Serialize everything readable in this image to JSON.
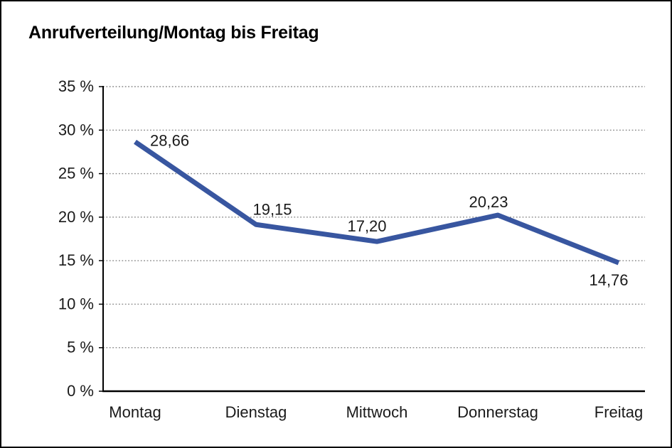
{
  "window": {
    "title": "Anrufverteilung/Montag bis Freitag"
  },
  "chart_data": {
    "type": "line",
    "title": "Anrufverteilung/Montag bis Freitag",
    "categories": [
      "Montag",
      "Dienstag",
      "Mittwoch",
      "Donnerstag",
      "Freitag"
    ],
    "series": [
      {
        "name": "Anrufverteilung",
        "values": [
          28.66,
          19.15,
          17.2,
          20.23,
          14.76
        ],
        "point_labels": [
          "28,66",
          "19,15",
          "17,20",
          "20,23",
          "14,76"
        ]
      }
    ],
    "xlabel": "",
    "ylabel": "",
    "ylim": [
      0,
      35
    ],
    "y_tick_step": 5,
    "y_ticks": [
      {
        "value": 35,
        "label": "35 %"
      },
      {
        "value": 30,
        "label": "30 %"
      },
      {
        "value": 25,
        "label": "25 %"
      },
      {
        "value": 20,
        "label": "20 %"
      },
      {
        "value": 15,
        "label": "15 %"
      },
      {
        "value": 10,
        "label": "10 %"
      },
      {
        "value": 5,
        "label": "5 %"
      },
      {
        "value": 0,
        "label": "0 %"
      }
    ],
    "grid": "horizontal-dotted",
    "legend": "none",
    "colors": {
      "line": "#3856A0",
      "grid": "#8a8a8a",
      "axis": "#000000",
      "text": "#1a1a1a",
      "background": "#ffffff",
      "border": "#000000"
    }
  }
}
